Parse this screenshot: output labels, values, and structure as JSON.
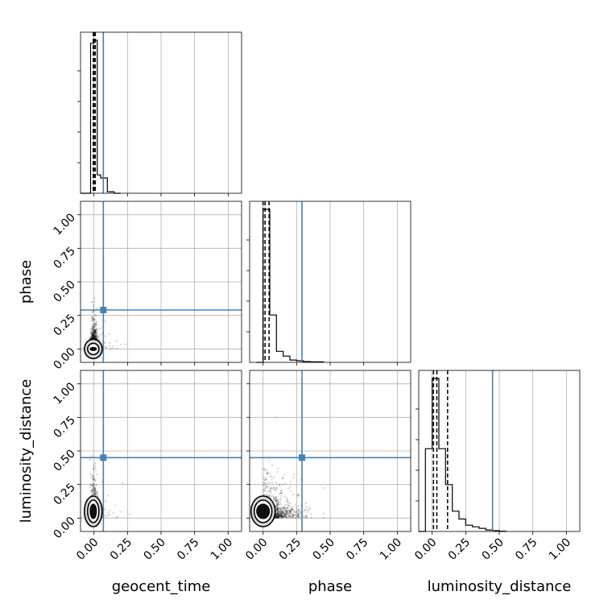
{
  "chart_data": {
    "type": "corner",
    "parameters": [
      "geocent_time",
      "phase",
      "luminosity_distance"
    ],
    "axis_range": [
      -0.1,
      1.1
    ],
    "ticks": [
      0.0,
      0.25,
      0.5,
      0.75,
      1.0
    ],
    "tick_labels": [
      "0.00",
      "0.25",
      "0.50",
      "0.75",
      "1.00"
    ],
    "grid": true,
    "truth_color": "#4682b4",
    "hist_color": "#000000",
    "truths": {
      "geocent_time": 0.07,
      "phase": 0.29,
      "luminosity_distance": 0.45
    },
    "quantiles": {
      "geocent_time": [
        -0.005,
        0.0,
        0.01
      ],
      "phase": [
        0.0,
        0.015,
        0.045
      ],
      "luminosity_distance": [
        0.01,
        0.035,
        0.115
      ]
    },
    "histograms": {
      "geocent_time": {
        "bin_edges": [
          -0.1,
          -0.05,
          -0.025,
          0.0,
          0.025,
          0.05,
          0.1,
          0.15,
          0.2
        ],
        "counts": [
          0.0,
          0.0,
          0.98,
          1.0,
          0.12,
          0.1,
          0.01,
          0.0
        ]
      },
      "phase": {
        "bin_edges": [
          -0.05,
          0.0,
          0.05,
          0.1,
          0.15,
          0.2,
          0.25,
          0.3,
          0.35,
          0.45
        ],
        "counts": [
          0.0,
          0.97,
          0.3,
          0.07,
          0.04,
          0.015,
          0.01,
          0.005,
          0.003
        ]
      },
      "luminosity_distance": {
        "bin_edges": [
          -0.1,
          -0.05,
          0.0,
          0.05,
          0.1,
          0.15,
          0.2,
          0.25,
          0.3,
          0.35,
          0.4,
          0.45,
          0.5,
          0.55
        ],
        "counts": [
          0.0,
          0.53,
          0.98,
          0.53,
          0.3,
          0.13,
          0.08,
          0.04,
          0.03,
          0.02,
          0.01,
          0.005,
          0.002
        ]
      }
    },
    "scatter_extent": {
      "geocent_time": [
        -0.03,
        0.35
      ],
      "phase": [
        -0.02,
        0.65
      ],
      "luminosity_distance": [
        -0.02,
        0.75
      ]
    }
  }
}
